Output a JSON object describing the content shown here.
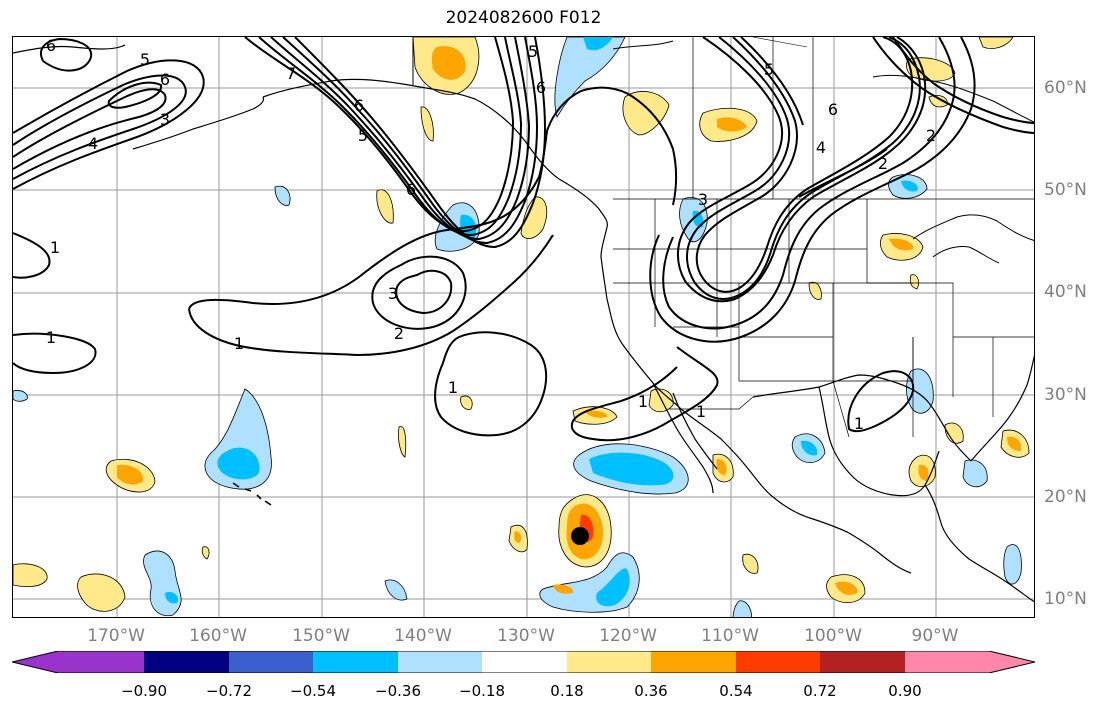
{
  "title": "2024082600 F012",
  "lon_labels": [
    "170°W",
    "160°W",
    "150°W",
    "140°W",
    "130°W",
    "120°W",
    "110°W",
    "100°W",
    "90°W"
  ],
  "lat_labels": [
    "60°N",
    "50°N",
    "40°N",
    "30°N",
    "20°N",
    "10°N"
  ],
  "colorbar": {
    "ticks": [
      "−0.90",
      "−0.72",
      "−0.54",
      "−0.36",
      "−0.18",
      "0.18",
      "0.36",
      "0.54",
      "0.72",
      "0.90"
    ],
    "colors": [
      "#9933cc",
      "#000080",
      "#3a5fcd",
      "#00bfff",
      "#b0e0ff",
      "#ffffff",
      "#ffe98a",
      "#ffa500",
      "#ff3c00",
      "#b22222",
      "#ff88aa"
    ]
  },
  "contour_labels": [
    "6",
    "5",
    "6",
    "4",
    "3",
    "1",
    "6",
    "5",
    "6",
    "5",
    "6",
    "7",
    "3",
    "4",
    "5",
    "6",
    "2",
    "1",
    "3",
    "2",
    "1",
    "1",
    "1",
    "1",
    "2",
    "1"
  ],
  "storm_marker": "storm-center-dot"
}
